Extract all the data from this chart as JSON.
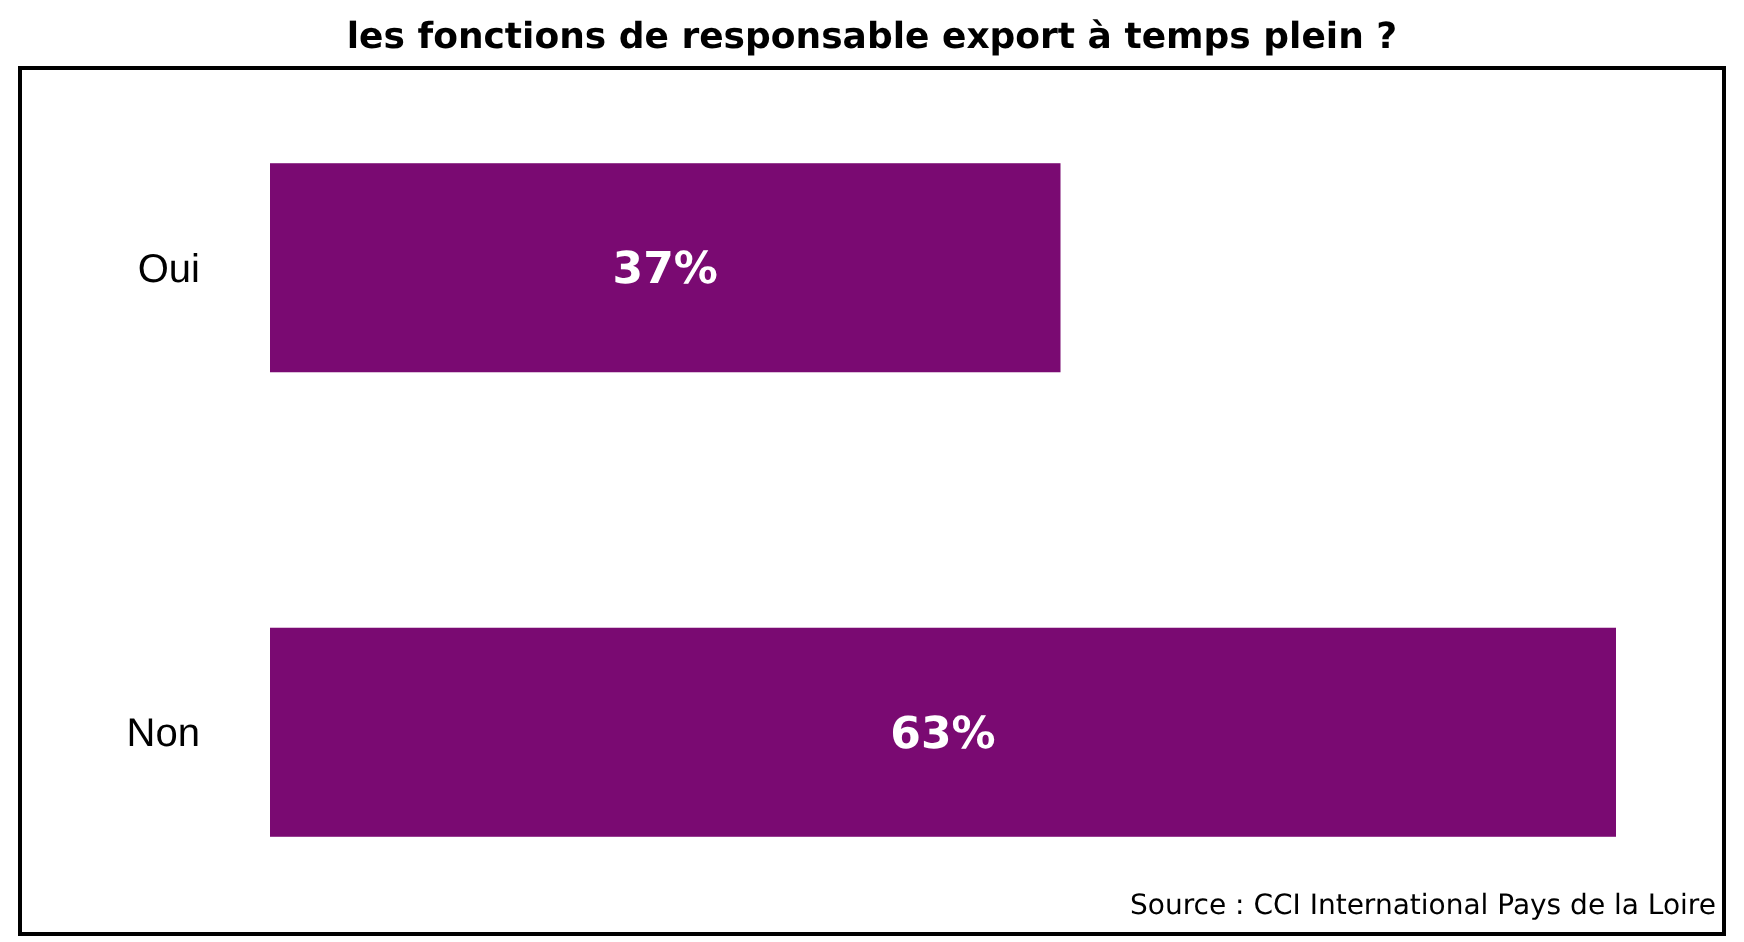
{
  "chart_data": {
    "type": "bar",
    "orientation": "horizontal",
    "title": "les fonctions de responsable export à temps plein ?",
    "categories": [
      "Oui",
      "Non"
    ],
    "values": [
      37,
      63
    ],
    "value_labels": [
      "37%",
      "63%"
    ],
    "color": "#7a0a72",
    "annotations": [
      "Source : CCI International Pays de la Loire"
    ]
  }
}
